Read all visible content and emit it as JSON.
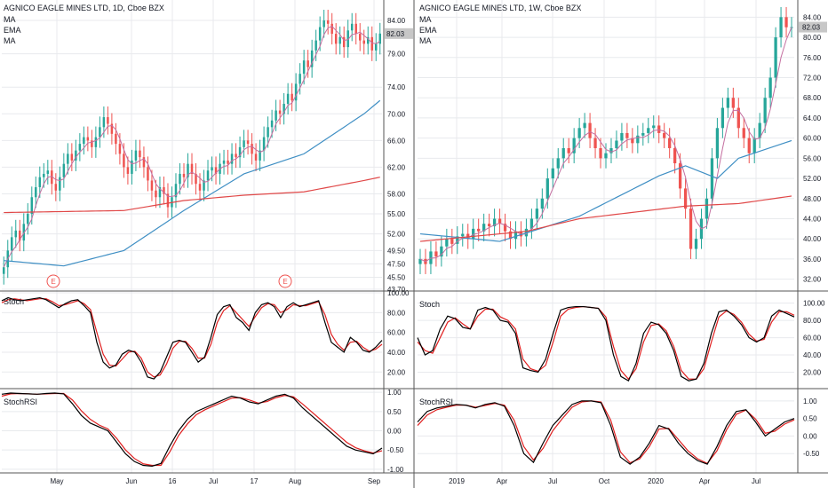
{
  "colors": {
    "up": "#26a69a",
    "down": "#ef5350",
    "ema": "#3f8fc4",
    "ma_short": "#c46fa0",
    "ma_long": "#e04848",
    "stoch_k": "#000000",
    "stoch_d": "#e02020",
    "grid": "#e8eaed",
    "border": "#555555",
    "price_badge": "#c7c7c7"
  },
  "panels": [
    {
      "title": "AGNICO EAGLE MINES LTD, 1D, Cboe BZX",
      "legend": [
        "MA",
        "EMA",
        "MA"
      ],
      "last_price_label": "82.03",
      "earnings_marker_text": "E",
      "osc_labels": [
        "Stoch",
        "StochRSI"
      ],
      "price_axis_ticks": [
        "84.00",
        "82.03",
        "79.00",
        "74.00",
        "70.00",
        "66.00",
        "62.00",
        "58.00",
        "55.00",
        "52.00",
        "49.50",
        "47.50",
        "45.50",
        "43.70"
      ],
      "stoch_axis_ticks": [
        "100.00",
        "80.00",
        "60.00",
        "40.00",
        "20.00"
      ],
      "stochrsi_axis_ticks": [
        "1.00",
        "0.50",
        "0.00",
        "-0.50",
        "-1.00"
      ],
      "time_axis_ticks": [
        "May",
        "Jun",
        "16",
        "Jul",
        "17",
        "Aug",
        "Sep"
      ]
    },
    {
      "title": "AGNICO EAGLE MINES LTD, 1W, Cboe BZX",
      "legend": [
        "MA",
        "EMA",
        "MA"
      ],
      "last_price_label": "82.03",
      "osc_labels": [
        "Stoch",
        "StochRSI"
      ],
      "price_axis_ticks": [
        "84.00",
        "82.03",
        "80.00",
        "76.00",
        "72.00",
        "68.00",
        "64.00",
        "60.00",
        "56.00",
        "52.00",
        "48.00",
        "44.00",
        "40.00",
        "36.00",
        "32.00"
      ],
      "stoch_axis_ticks": [
        "100.00",
        "80.00",
        "60.00",
        "40.00",
        "20.00"
      ],
      "stochrsi_axis_ticks": [
        "1.00",
        "0.50",
        "0.00",
        "-0.50"
      ],
      "time_axis_ticks": [
        "2019",
        "Apr",
        "Jul",
        "Oct",
        "2020",
        "Apr",
        "Jul"
      ]
    }
  ],
  "chart_data": [
    {
      "type": "candlestick",
      "title": "AGNICO EAGLE MINES LTD, 1D, Cboe BZX",
      "price_ylim": [
        43.7,
        86
      ],
      "closes": [
        47.0,
        49.5,
        51.5,
        52.5,
        51.0,
        53.5,
        55.0,
        57.5,
        59.0,
        60.5,
        61.0,
        61.5,
        59.5,
        58.5,
        60.5,
        62.5,
        64.0,
        63.0,
        64.5,
        65.5,
        66.5,
        66.0,
        65.0,
        66.5,
        68.0,
        69.5,
        68.5,
        67.0,
        65.5,
        64.0,
        62.0,
        61.0,
        63.0,
        64.5,
        63.5,
        62.0,
        60.0,
        58.5,
        57.5,
        59.0,
        58.0,
        56.0,
        57.5,
        59.5,
        61.0,
        60.5,
        62.5,
        61.0,
        59.5,
        58.5,
        60.0,
        61.5,
        62.0,
        61.0,
        62.5,
        63.0,
        62.5,
        64.0,
        63.5,
        65.0,
        66.0,
        65.5,
        64.0,
        63.0,
        64.5,
        66.5,
        68.0,
        69.0,
        70.5,
        70.0,
        71.5,
        73.0,
        72.0,
        74.5,
        76.0,
        78.0,
        77.0,
        79.5,
        81.0,
        83.0,
        84.0,
        83.5,
        82.0,
        80.5,
        81.5,
        80.0,
        82.5,
        83.5,
        82.0,
        81.0,
        80.5,
        81.5,
        79.5,
        80.5,
        82.03
      ],
      "ema": {
        "x": [
          0,
          15,
          30,
          45,
          60,
          75,
          90,
          94
        ],
        "y": [
          48.0,
          47.2,
          49.5,
          55.5,
          61.0,
          64.0,
          70.0,
          72.0
        ]
      },
      "ma_long": {
        "x": [
          0,
          30,
          45,
          60,
          75,
          90,
          94
        ],
        "y": [
          55.2,
          55.5,
          57.0,
          57.8,
          58.3,
          60.0,
          60.5
        ]
      },
      "stoch_k": [
        92,
        95,
        93,
        92,
        93,
        94,
        95,
        93,
        89,
        85,
        89,
        92,
        93,
        87,
        80,
        50,
        30,
        24,
        27,
        38,
        42,
        40,
        30,
        15,
        13,
        20,
        35,
        50,
        52,
        50,
        40,
        30,
        35,
        55,
        78,
        86,
        88,
        75,
        70,
        62,
        80,
        88,
        90,
        86,
        75,
        86,
        90,
        86,
        88,
        90,
        92,
        70,
        50,
        45,
        40,
        55,
        50,
        42,
        40,
        45,
        52
      ],
      "stoch_d": [
        90,
        93,
        94,
        93,
        92,
        93,
        94,
        94,
        91,
        87,
        88,
        90,
        92,
        89,
        83,
        60,
        38,
        27,
        26,
        33,
        40,
        41,
        34,
        20,
        15,
        17,
        28,
        44,
        51,
        51,
        44,
        34,
        34,
        48,
        70,
        82,
        87,
        80,
        73,
        66,
        76,
        85,
        89,
        88,
        80,
        83,
        88,
        87,
        87,
        89,
        91,
        78,
        58,
        48,
        42,
        50,
        51,
        45,
        41,
        43,
        48
      ],
      "stochrsi_k": [
        0.95,
        0.98,
        0.97,
        0.96,
        0.95,
        0.97,
        0.98,
        0.96,
        0.7,
        0.4,
        0.2,
        0.1,
        0.0,
        -0.3,
        -0.6,
        -0.8,
        -0.9,
        -0.92,
        -0.85,
        -0.4,
        0.0,
        0.3,
        0.5,
        0.6,
        0.7,
        0.8,
        0.9,
        0.85,
        0.75,
        0.7,
        0.8,
        0.9,
        0.95,
        0.85,
        0.6,
        0.4,
        0.2,
        0.0,
        -0.2,
        -0.4,
        -0.5,
        -0.55,
        -0.6,
        -0.45
      ],
      "stochrsi_d": [
        0.9,
        0.96,
        0.97,
        0.96,
        0.95,
        0.96,
        0.97,
        0.97,
        0.8,
        0.52,
        0.3,
        0.15,
        0.05,
        -0.2,
        -0.5,
        -0.72,
        -0.86,
        -0.9,
        -0.9,
        -0.55,
        -0.12,
        0.18,
        0.42,
        0.55,
        0.65,
        0.75,
        0.85,
        0.86,
        0.8,
        0.72,
        0.76,
        0.86,
        0.92,
        0.88,
        0.7,
        0.5,
        0.3,
        0.1,
        -0.1,
        -0.3,
        -0.44,
        -0.52,
        -0.58,
        -0.52
      ]
    },
    {
      "type": "candlestick",
      "title": "AGNICO EAGLE MINES LTD, 1W, Cboe BZX",
      "price_ylim": [
        30,
        86
      ],
      "closes": [
        36.0,
        35.0,
        37.5,
        36.5,
        38.5,
        40.0,
        39.0,
        40.5,
        41.0,
        40.0,
        42.0,
        41.5,
        43.0,
        42.5,
        44.0,
        43.0,
        41.5,
        40.0,
        41.5,
        40.5,
        42.0,
        44.0,
        46.0,
        48.0,
        52.0,
        54.0,
        56.0,
        58.0,
        57.0,
        60.0,
        62.0,
        63.0,
        60.0,
        58.0,
        56.0,
        57.0,
        58.0,
        59.5,
        61.0,
        60.0,
        59.0,
        60.5,
        61.0,
        62.0,
        62.5,
        61.0,
        60.0,
        58.0,
        55.0,
        50.0,
        46.0,
        38.0,
        40.0,
        44.0,
        48.0,
        56.0,
        62.0,
        66.0,
        68.0,
        66.0,
        62.0,
        60.0,
        57.0,
        60.0,
        63.0,
        68.0,
        72.0,
        80.0,
        84.0,
        82.0,
        82.03
      ],
      "ema": {
        "x": [
          0,
          15,
          30,
          45,
          50,
          56,
          60,
          70
        ],
        "y": [
          41.0,
          39.5,
          44.5,
          52.5,
          54.5,
          52.0,
          56.0,
          59.5
        ]
      },
      "ma_long": {
        "x": [
          0,
          20,
          30,
          50,
          60,
          70
        ],
        "y": [
          39.5,
          41.5,
          44.0,
          46.5,
          47.0,
          48.5
        ]
      },
      "stoch_k": [
        60,
        40,
        45,
        70,
        85,
        82,
        72,
        70,
        92,
        95,
        92,
        80,
        78,
        65,
        25,
        22,
        20,
        35,
        65,
        92,
        95,
        96,
        96,
        95,
        94,
        80,
        40,
        15,
        10,
        30,
        65,
        78,
        75,
        65,
        45,
        15,
        10,
        12,
        30,
        65,
        90,
        92,
        85,
        75,
        60,
        55,
        60,
        85,
        92,
        88,
        84
      ],
      "stoch_d": [
        55,
        45,
        42,
        60,
        78,
        83,
        76,
        70,
        85,
        93,
        93,
        84,
        80,
        70,
        35,
        24,
        21,
        28,
        55,
        85,
        93,
        95,
        96,
        95,
        94,
        84,
        50,
        22,
        12,
        24,
        55,
        74,
        76,
        68,
        50,
        22,
        12,
        12,
        24,
        55,
        84,
        91,
        87,
        78,
        64,
        56,
        58,
        78,
        90,
        90,
        86
      ],
      "stochrsi_k": [
        0.4,
        0.7,
        0.8,
        0.85,
        0.9,
        0.88,
        0.8,
        0.9,
        0.95,
        0.85,
        0.3,
        -0.5,
        -0.75,
        -0.2,
        0.3,
        0.6,
        0.9,
        1.0,
        1.0,
        0.95,
        0.3,
        -0.6,
        -0.8,
        -0.6,
        -0.2,
        0.3,
        0.2,
        -0.2,
        -0.5,
        -0.7,
        -0.8,
        -0.3,
        0.3,
        0.7,
        0.75,
        0.4,
        0.0,
        0.2,
        0.4,
        0.5
      ],
      "stochrsi_d": [
        0.3,
        0.6,
        0.75,
        0.82,
        0.88,
        0.88,
        0.82,
        0.87,
        0.93,
        0.88,
        0.45,
        -0.3,
        -0.68,
        -0.35,
        0.15,
        0.5,
        0.82,
        0.97,
        1.0,
        0.97,
        0.45,
        -0.45,
        -0.76,
        -0.65,
        -0.3,
        0.2,
        0.22,
        -0.1,
        -0.42,
        -0.65,
        -0.78,
        -0.42,
        0.18,
        0.62,
        0.74,
        0.48,
        0.08,
        0.14,
        0.34,
        0.46
      ]
    }
  ]
}
